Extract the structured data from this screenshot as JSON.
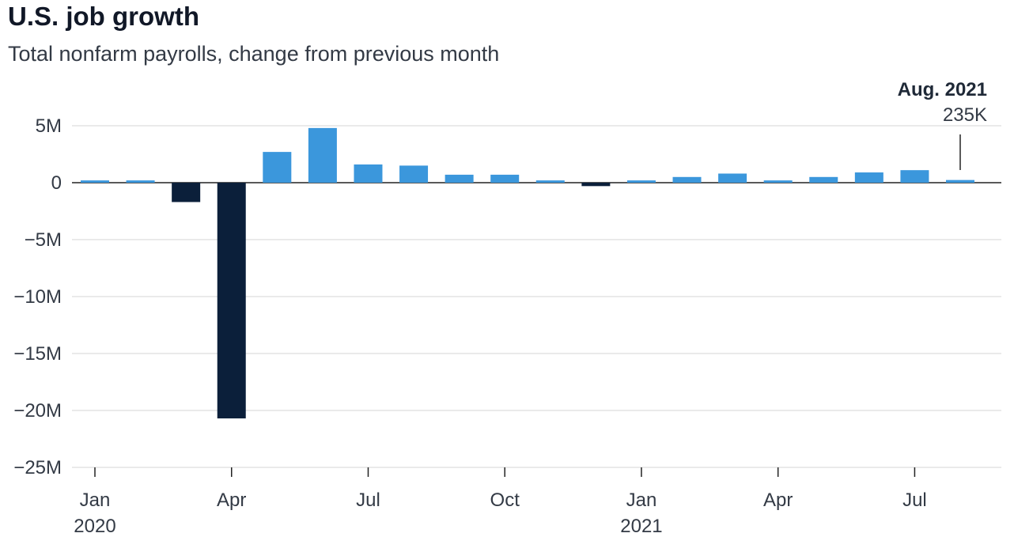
{
  "chart_data": {
    "type": "bar",
    "title": "U.S. job growth",
    "subtitle": "Total nonfarm payrolls, change from previous month",
    "unit": "M",
    "categories": [
      "Jan 2020",
      "Feb 2020",
      "Mar 2020",
      "Apr 2020",
      "May 2020",
      "Jun 2020",
      "Jul 2020",
      "Aug 2020",
      "Sep 2020",
      "Oct 2020",
      "Nov 2020",
      "Dec 2020",
      "Jan 2021",
      "Feb 2021",
      "Mar 2021",
      "Apr 2021",
      "May 2021",
      "Jun 2021",
      "Jul 2021",
      "Aug 2021"
    ],
    "values": [
      0.2,
      0.2,
      -1.7,
      -20.7,
      2.7,
      4.8,
      1.6,
      1.5,
      0.7,
      0.7,
      0.2,
      -0.3,
      0.2,
      0.5,
      0.8,
      0.2,
      0.5,
      0.9,
      1.1,
      0.235
    ],
    "ylim": [
      -25,
      5
    ],
    "yticks": [
      5,
      0,
      -5,
      -10,
      -15,
      -20,
      -25
    ],
    "ytick_labels": [
      "5M",
      "0",
      "-5M",
      "-10M",
      "-15M",
      "-20M",
      "-25M"
    ],
    "xticks": [
      {
        "index": 0,
        "label": "Jan",
        "year": "2020"
      },
      {
        "index": 3,
        "label": "Apr",
        "year": ""
      },
      {
        "index": 6,
        "label": "Jul",
        "year": ""
      },
      {
        "index": 9,
        "label": "Oct",
        "year": ""
      },
      {
        "index": 12,
        "label": "Jan",
        "year": "2021"
      },
      {
        "index": 15,
        "label": "Apr",
        "year": ""
      },
      {
        "index": 18,
        "label": "Jul",
        "year": ""
      }
    ],
    "grid": true,
    "colors": {
      "positive": "#3b97dc",
      "negative": "#0b1f3a",
      "grid": "#d4d4d4",
      "axis": "#222222"
    },
    "annotation": {
      "index": 19,
      "title": "Aug. 2021",
      "value_label": "235K"
    }
  }
}
